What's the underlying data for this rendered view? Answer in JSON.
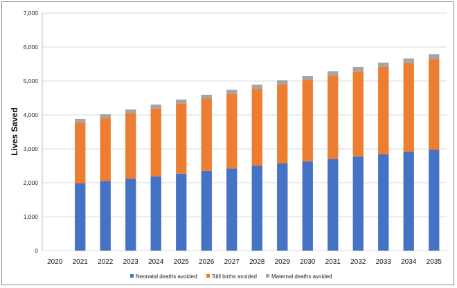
{
  "chart_data": {
    "type": "bar",
    "stacked": true,
    "categories": [
      "2020",
      "2021",
      "2022",
      "2023",
      "2024",
      "2025",
      "2026",
      "2027",
      "2028",
      "2029",
      "2030",
      "2031",
      "2032",
      "2033",
      "2034",
      "2035"
    ],
    "series": [
      {
        "name": "Neonatal deaths avoided",
        "color": "#4472C4",
        "values": [
          0,
          1980,
          2050,
          2120,
          2190,
          2270,
          2350,
          2420,
          2500,
          2570,
          2630,
          2700,
          2770,
          2840,
          2910,
          2970
        ]
      },
      {
        "name": "Still births avoided",
        "color": "#ED7D31",
        "values": [
          0,
          1790,
          1860,
          1930,
          2000,
          2070,
          2130,
          2200,
          2270,
          2330,
          2390,
          2460,
          2510,
          2570,
          2620,
          2680
        ]
      },
      {
        "name": "Maternal deaths avoided",
        "color": "#A5A5A5",
        "values": [
          0,
          110,
          110,
          110,
          115,
          115,
          115,
          120,
          120,
          120,
          125,
          125,
          130,
          130,
          135,
          140
        ]
      }
    ],
    "title": "",
    "xlabel": "",
    "ylabel": "Lives Saved",
    "ylim": [
      0,
      7000
    ],
    "yticks": [
      "0",
      "1,000",
      "2,000",
      "3,000",
      "4,000",
      "5,000",
      "6,000",
      "7,000"
    ],
    "grid": true,
    "legend_position": "bottom"
  }
}
